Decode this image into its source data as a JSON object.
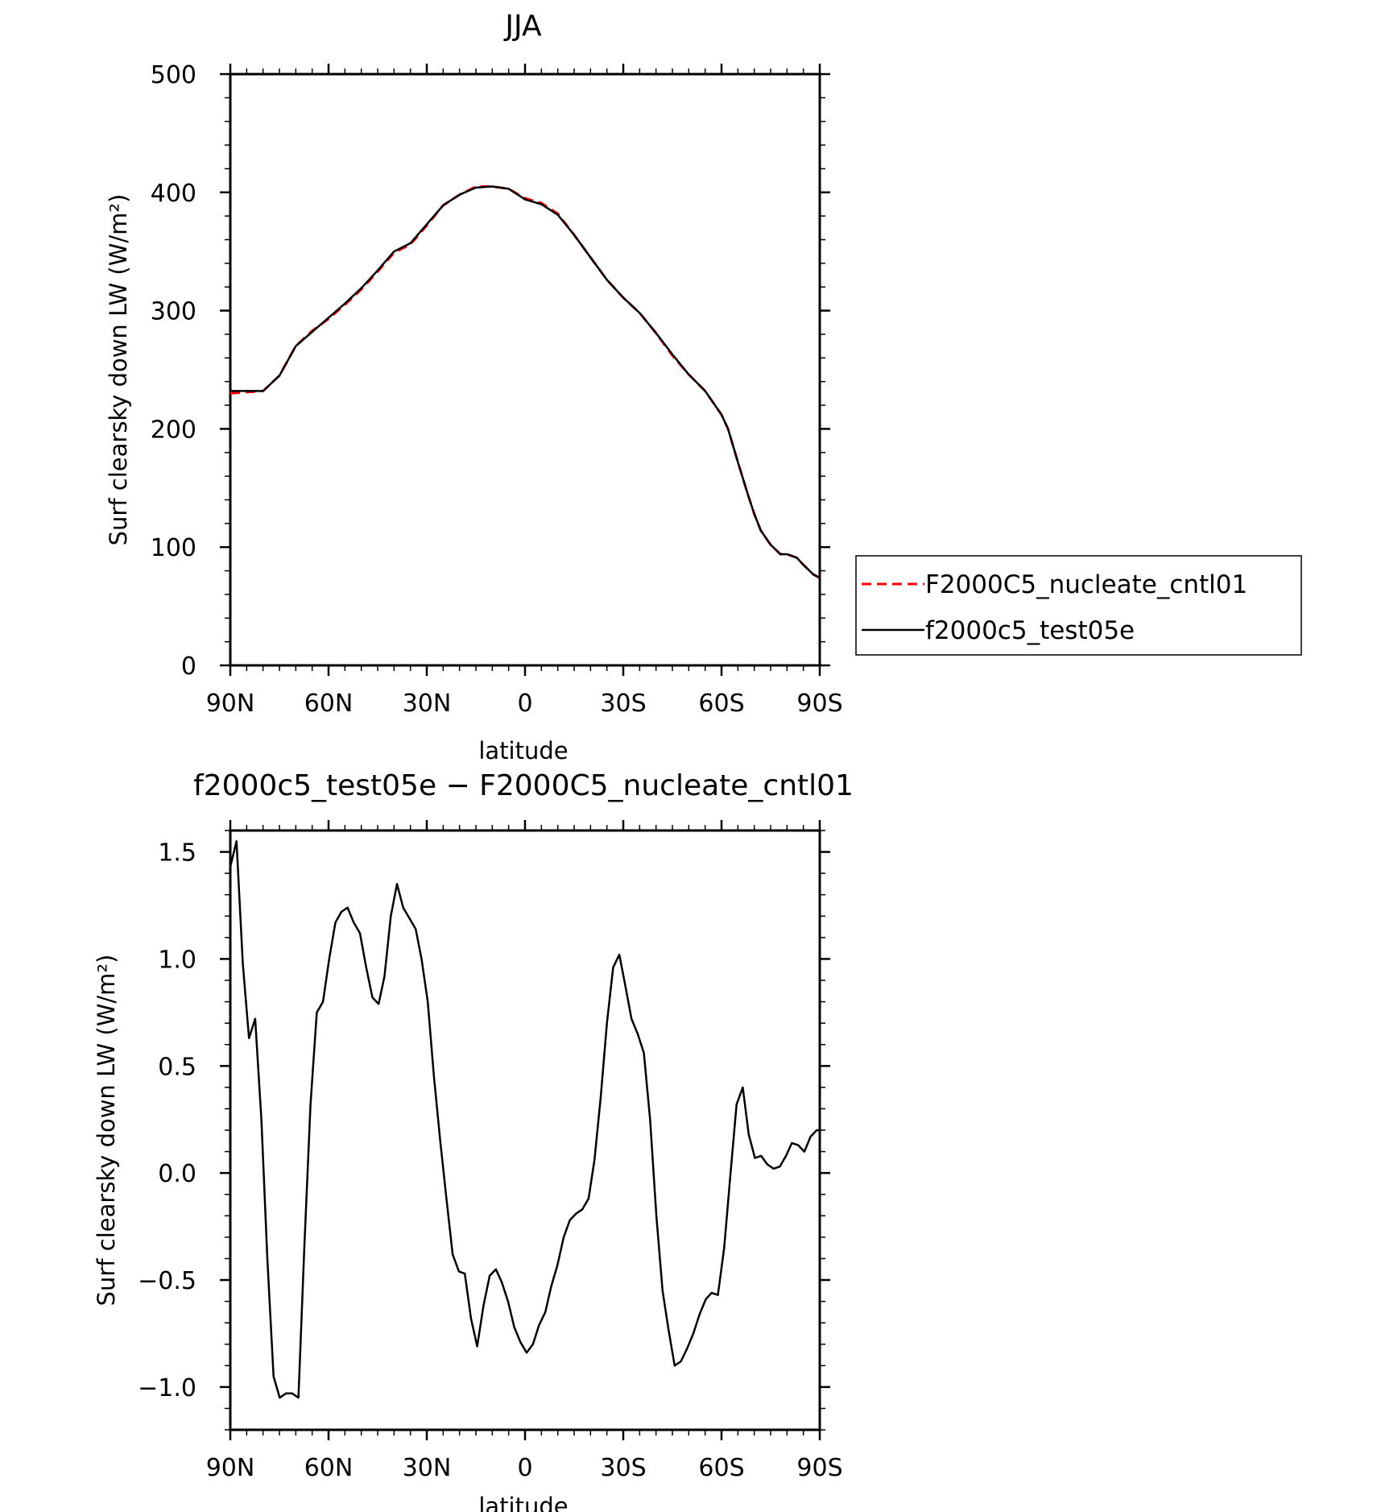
{
  "chart_data": [
    {
      "type": "line",
      "title": "JJA",
      "xlabel": "latitude",
      "ylabel": "Surf clearsky down LW (W/m²)",
      "xlim": [
        90,
        -90
      ],
      "ylim": [
        0,
        500
      ],
      "x_ticks": [
        90,
        60,
        30,
        0,
        -30,
        -60,
        -90
      ],
      "x_tick_labels": [
        "90N",
        "60N",
        "30N",
        "0",
        "30S",
        "60S",
        "90S"
      ],
      "y_ticks": [
        0,
        100,
        200,
        300,
        400,
        500
      ],
      "y_tick_labels": [
        "0",
        "100",
        "200",
        "300",
        "400",
        "500"
      ],
      "legend_position": "right",
      "series": [
        {
          "name": "F2000C5_nucleate_cntl01",
          "color": "#ff0000",
          "style": "dashed",
          "x": [
            90,
            85,
            80,
            75,
            70,
            65,
            60,
            55,
            50,
            45,
            40,
            35,
            30,
            25,
            20,
            15,
            10,
            5,
            0,
            -5,
            -10,
            -15,
            -20,
            -25,
            -30,
            -35,
            -40,
            -45,
            -50,
            -55,
            -60,
            -62,
            -65,
            -68,
            -70,
            -72,
            -75,
            -78,
            -80,
            -83,
            -85,
            -88,
            -90
          ],
          "values": [
            230,
            231,
            232,
            245,
            270,
            283,
            293,
            305,
            318,
            333,
            349,
            356,
            372,
            389,
            398,
            405,
            405,
            403,
            395,
            391,
            382,
            364,
            345,
            326,
            311,
            298,
            281,
            262,
            246,
            232,
            212,
            200,
            172,
            145,
            128,
            114,
            102,
            94,
            94,
            91,
            85,
            77,
            74
          ]
        },
        {
          "name": "f2000c5_test05e",
          "color": "#000000",
          "style": "solid",
          "x": [
            90,
            85,
            80,
            75,
            70,
            65,
            60,
            55,
            50,
            45,
            40,
            35,
            30,
            25,
            20,
            15,
            10,
            5,
            0,
            -5,
            -10,
            -15,
            -20,
            -25,
            -30,
            -35,
            -40,
            -45,
            -50,
            -55,
            -60,
            -62,
            -65,
            -68,
            -70,
            -72,
            -75,
            -78,
            -80,
            -83,
            -85,
            -88,
            -90
          ],
          "values": [
            232,
            232,
            232,
            245,
            270,
            282,
            294,
            306,
            319,
            334,
            350,
            357,
            373,
            389,
            398,
            404,
            405,
            403,
            394,
            390,
            381,
            364,
            345,
            326,
            311,
            298,
            281,
            263,
            246,
            232,
            212,
            200,
            172,
            145,
            128,
            114,
            102,
            94,
            94,
            91,
            85,
            77,
            74
          ]
        }
      ]
    },
    {
      "type": "line",
      "title": "f2000c5_test05e − F2000C5_nucleate_cntl01",
      "xlabel": "latitude",
      "ylabel": "Surf clearsky down LW (W/m²)",
      "xlim": [
        90,
        -90
      ],
      "ylim": [
        -1.2,
        1.6
      ],
      "x_ticks": [
        90,
        60,
        30,
        0,
        -30,
        -60,
        -90
      ],
      "x_tick_labels": [
        "90N",
        "60N",
        "30N",
        "0",
        "30S",
        "60S",
        "90S"
      ],
      "y_ticks": [
        -1.0,
        -0.5,
        0.0,
        0.5,
        1.0,
        1.5
      ],
      "y_tick_labels": [
        "−1.0",
        "−0.5",
        "0.0",
        "0.5",
        "1.0",
        "1.5"
      ],
      "series": [
        {
          "color": "#000000",
          "style": "solid",
          "x": [
            90,
            88.1,
            86.2,
            84.3,
            82.4,
            80.5,
            78.7,
            76.8,
            74.9,
            73.0,
            71.1,
            69.2,
            67.4,
            65.5,
            63.6,
            61.7,
            59.8,
            57.9,
            56.1,
            54.2,
            52.3,
            50.4,
            48.5,
            46.6,
            44.7,
            42.9,
            41.0,
            39.1,
            37.2,
            35.3,
            33.4,
            31.6,
            29.7,
            27.8,
            25.9,
            24.0,
            22.1,
            20.2,
            18.4,
            16.5,
            14.6,
            12.7,
            10.8,
            8.9,
            7.1,
            5.2,
            3.3,
            1.4,
            -0.5,
            -2.4,
            -4.3,
            -6.2,
            -8.0,
            -9.9,
            -11.8,
            -13.7,
            -15.6,
            -17.5,
            -19.4,
            -21.2,
            -23.1,
            -25.0,
            -26.9,
            -28.8,
            -30.7,
            -32.5,
            -34.4,
            -36.3,
            -38.2,
            -40.1,
            -42.0,
            -43.8,
            -45.7,
            -47.6,
            -49.5,
            -51.4,
            -53.3,
            -55.2,
            -57.0,
            -58.9,
            -60.8,
            -62.7,
            -64.6,
            -66.5,
            -68.3,
            -70.2,
            -72.1,
            -74.0,
            -75.9,
            -77.8,
            -79.7,
            -81.5,
            -83.4,
            -85.3,
            -87.2,
            -89.1,
            -90
          ],
          "values": [
            1.43,
            1.55,
            0.98,
            0.63,
            0.72,
            0.25,
            -0.4,
            -0.95,
            -1.05,
            -1.03,
            -1.03,
            -1.05,
            -0.35,
            0.32,
            0.75,
            0.8,
            1.0,
            1.17,
            1.22,
            1.24,
            1.17,
            1.12,
            0.96,
            0.82,
            0.79,
            0.92,
            1.2,
            1.35,
            1.24,
            1.19,
            1.14,
            1.0,
            0.8,
            0.45,
            0.15,
            -0.12,
            -0.38,
            -0.46,
            -0.47,
            -0.68,
            -0.81,
            -0.62,
            -0.48,
            -0.45,
            -0.51,
            -0.6,
            -0.72,
            -0.79,
            -0.84,
            -0.8,
            -0.71,
            -0.65,
            -0.53,
            -0.43,
            -0.3,
            -0.22,
            -0.19,
            -0.17,
            -0.12,
            0.06,
            0.35,
            0.7,
            0.96,
            1.02,
            0.87,
            0.72,
            0.65,
            0.56,
            0.25,
            -0.2,
            -0.55,
            -0.73,
            -0.9,
            -0.88,
            -0.82,
            -0.75,
            -0.66,
            -0.59,
            -0.56,
            -0.57,
            -0.35,
            -0.01,
            0.32,
            0.4,
            0.18,
            0.07,
            0.08,
            0.04,
            0.02,
            0.03,
            0.08,
            0.14,
            0.13,
            0.1,
            0.17,
            0.2,
            0.2
          ]
        }
      ]
    }
  ]
}
